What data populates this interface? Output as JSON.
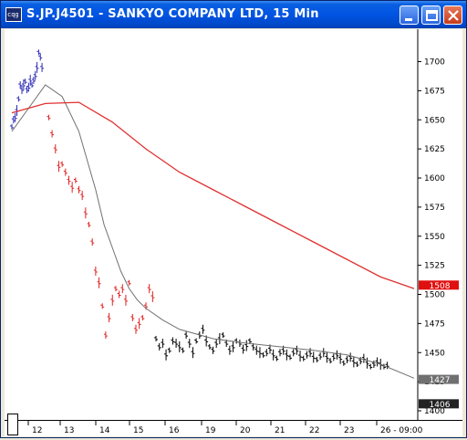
{
  "window": {
    "title": "S.JP.J4501 - SANKYO COMPANY LTD, 15 Min",
    "icon_label": "cqg",
    "controls": [
      "minimize-icon",
      "maximize-icon",
      "close-icon"
    ]
  },
  "colors": {
    "up_bars": "#2b2bb8",
    "down_bars": "#e02020",
    "neutral_bars": "#000000",
    "fast_ma": "#707070",
    "slow_ma": "#e03030",
    "last_price_tag": "#e01010",
    "ma_tag": "#707070"
  },
  "price_tags": {
    "last_price": "1508",
    "fast_ma": "1427",
    "low": "1406"
  },
  "chart_data": {
    "type": "line",
    "ylim": [
      1400,
      1720
    ],
    "y_ticks": [
      1400,
      1425,
      1450,
      1475,
      1500,
      1525,
      1550,
      1575,
      1600,
      1625,
      1650,
      1675,
      1700
    ],
    "x_tick_labels": [
      "12",
      "13",
      "14",
      "15",
      "16",
      "19",
      "20",
      "21",
      "22",
      "23",
      "26 - 09:00"
    ],
    "series": [
      {
        "segment": "blue",
        "x": [
          0,
          1,
          2,
          3,
          4,
          5,
          6,
          7,
          8,
          9,
          10,
          11,
          12,
          13,
          14,
          15,
          16,
          17,
          18
        ],
        "values": [
          1644,
          1650,
          1652,
          1658,
          1668,
          1680,
          1676,
          1680,
          1683,
          1676,
          1678,
          1684,
          1680,
          1684,
          1688,
          1695,
          1708,
          1704,
          1695
        ]
      },
      {
        "segment": "red",
        "x": [
          22,
          24,
          26,
          28,
          30,
          32,
          34,
          36,
          38,
          40,
          42,
          44,
          46,
          48,
          50,
          52,
          54,
          56,
          58,
          60,
          62,
          64,
          66,
          68,
          70,
          72,
          74,
          76,
          78,
          80,
          82,
          84
        ],
        "values": [
          1652,
          1638,
          1625,
          1610,
          1612,
          1605,
          1598,
          1592,
          1598,
          1590,
          1585,
          1570,
          1560,
          1545,
          1520,
          1510,
          1490,
          1465,
          1480,
          1495,
          1505,
          1500,
          1505,
          1495,
          1510,
          1480,
          1470,
          1475,
          1480,
          1490,
          1505,
          1498
        ]
      },
      {
        "segment": "black",
        "x": [
          86,
          88,
          90,
          92,
          94,
          96,
          98,
          100,
          102,
          104,
          106,
          108,
          110,
          112,
          114,
          116,
          118,
          120,
          122,
          124,
          126,
          128,
          130,
          132,
          134,
          136,
          138,
          140,
          142,
          144,
          146,
          148,
          150,
          152,
          154,
          156,
          158,
          160,
          162,
          164,
          166,
          168,
          170,
          172,
          174,
          176,
          178,
          180,
          182,
          184,
          186,
          188,
          190,
          192,
          194,
          196,
          198,
          200,
          202,
          204,
          206,
          208,
          210,
          212,
          214,
          216,
          218,
          220,
          222,
          224
        ],
        "values": [
          1462,
          1455,
          1458,
          1448,
          1452,
          1460,
          1458,
          1455,
          1452,
          1465,
          1458,
          1450,
          1460,
          1465,
          1470,
          1460,
          1455,
          1452,
          1458,
          1462,
          1465,
          1458,
          1452,
          1455,
          1460,
          1458,
          1453,
          1456,
          1460,
          1455,
          1452,
          1450,
          1448,
          1450,
          1453,
          1448,
          1445,
          1450,
          1452,
          1448,
          1446,
          1450,
          1452,
          1447,
          1445,
          1448,
          1450,
          1446,
          1444,
          1447,
          1450,
          1446,
          1443,
          1446,
          1448,
          1445,
          1441,
          1444,
          1446,
          1442,
          1440,
          1443,
          1445,
          1441,
          1438,
          1440,
          1442,
          1440,
          1438,
          1439
        ]
      }
    ],
    "moving_averages": [
      {
        "x": [
          0,
          10,
          20,
          30,
          40,
          50,
          55,
          60,
          65,
          70,
          75,
          80,
          90,
          100,
          120,
          140,
          160,
          180,
          200,
          220,
          240
        ],
        "values": [
          1640,
          1660,
          1680,
          1670,
          1640,
          1590,
          1560,
          1540,
          1520,
          1505,
          1495,
          1488,
          1478,
          1470,
          1462,
          1458,
          1455,
          1452,
          1448,
          1440,
          1428
        ]
      },
      {
        "x": [
          0,
          20,
          40,
          60,
          80,
          100,
          120,
          140,
          160,
          180,
          200,
          220,
          240
        ],
        "values": [
          1656,
          1664,
          1665,
          1648,
          1625,
          1605,
          1590,
          1575,
          1560,
          1545,
          1530,
          1515,
          1505
        ]
      }
    ]
  }
}
